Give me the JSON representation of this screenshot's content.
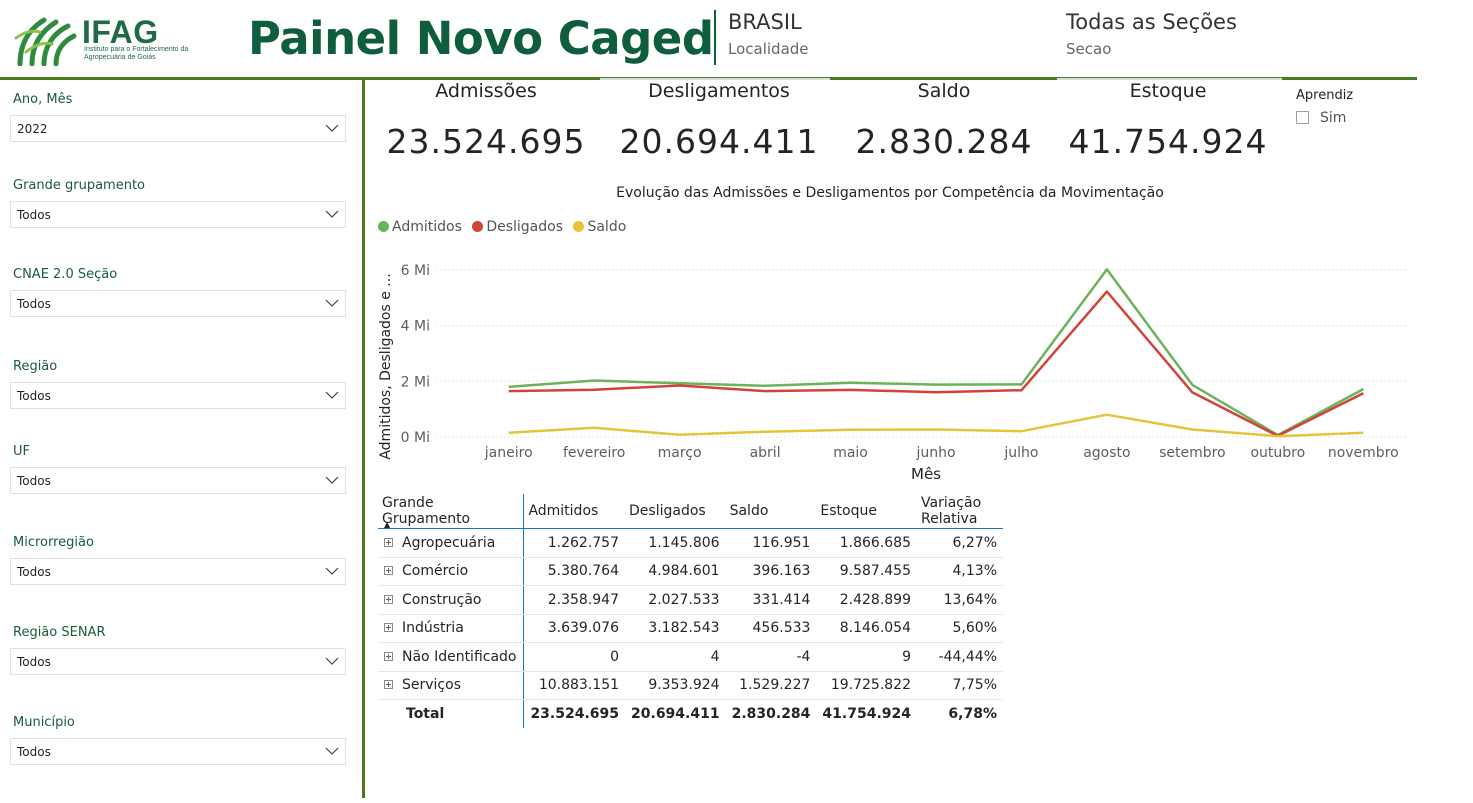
{
  "header": {
    "logo_text": "IFAG",
    "logo_subtitle": "Instituto para o Fortalecimento da Agropecuária de Goiás",
    "title": "Painel Novo Caged",
    "localidade_value": "BRASIL",
    "localidade_label": "Localidade",
    "secao_value": "Todas as Seções",
    "secao_label": "Secao"
  },
  "filters": [
    {
      "label": "Ano, Mês",
      "value": "2022"
    },
    {
      "label": "Grande grupamento",
      "value": "Todos"
    },
    {
      "label": "CNAE 2.0 Seção",
      "value": "Todos"
    },
    {
      "label": "Região",
      "value": "Todos"
    },
    {
      "label": "UF",
      "value": "Todos"
    },
    {
      "label": "Microrregião",
      "value": "Todos"
    },
    {
      "label": "Região SENAR",
      "value": "Todos"
    },
    {
      "label": "Município",
      "value": "Todos"
    }
  ],
  "kpis": [
    {
      "title": "Admissões",
      "value": "23.524.695"
    },
    {
      "title": "Desligamentos",
      "value": "20.694.411"
    },
    {
      "title": "Saldo",
      "value": "2.830.284"
    },
    {
      "title": "Estoque",
      "value": "41.754.924"
    }
  ],
  "aprendiz": {
    "title": "Aprendiz",
    "option": "Sim",
    "checked": false
  },
  "chart_data": {
    "type": "line",
    "title": "Evolução das Admissões e Desligamentos por Competência da Movimentação",
    "xlabel": "Mês",
    "ylabel": "Admitidos, Desligados e ...",
    "ylim": [
      0,
      6.5
    ],
    "y_ticks": [
      "0 Mi",
      "2 Mi",
      "4 Mi",
      "6 Mi"
    ],
    "y_tick_values": [
      0,
      2,
      4,
      6
    ],
    "legend_position": "top-left",
    "grid": true,
    "categories": [
      "janeiro",
      "fevereiro",
      "março",
      "abril",
      "maio",
      "junho",
      "julho",
      "agosto",
      "setembro",
      "outubro",
      "novembro"
    ],
    "series": [
      {
        "name": "Admitidos",
        "color": "#6bb35a",
        "values": [
          1.8,
          2.03,
          1.93,
          1.84,
          1.95,
          1.88,
          1.89,
          6.02,
          1.87,
          0.07,
          1.72
        ]
      },
      {
        "name": "Desligados",
        "color": "#d0443c",
        "values": [
          1.65,
          1.7,
          1.85,
          1.65,
          1.69,
          1.61,
          1.68,
          5.22,
          1.6,
          0.04,
          1.57
        ]
      },
      {
        "name": "Saldo",
        "color": "#e6c43a",
        "values": [
          0.15,
          0.33,
          0.08,
          0.19,
          0.26,
          0.27,
          0.21,
          0.8,
          0.27,
          0.03,
          0.15
        ]
      }
    ]
  },
  "table": {
    "columns": [
      "Grande Grupamento",
      "Admitidos",
      "Desligados",
      "Saldo",
      "Estoque",
      "Variação Relativa"
    ],
    "rows": [
      [
        "Agropecuária",
        "1.262.757",
        "1.145.806",
        "116.951",
        "1.866.685",
        "6,27%"
      ],
      [
        "Comércio",
        "5.380.764",
        "4.984.601",
        "396.163",
        "9.587.455",
        "4,13%"
      ],
      [
        "Construção",
        "2.358.947",
        "2.027.533",
        "331.414",
        "2.428.899",
        "13,64%"
      ],
      [
        "Indústria",
        "3.639.076",
        "3.182.543",
        "456.533",
        "8.146.054",
        "5,60%"
      ],
      [
        "Não Identificado",
        "0",
        "4",
        "-4",
        "9",
        "-44,44%"
      ],
      [
        "Serviços",
        "10.883.151",
        "9.353.924",
        "1.529.227",
        "19.725.822",
        "7,75%"
      ]
    ],
    "total": [
      "Total",
      "23.524.695",
      "20.694.411",
      "2.830.284",
      "41.754.924",
      "6,78%"
    ]
  }
}
